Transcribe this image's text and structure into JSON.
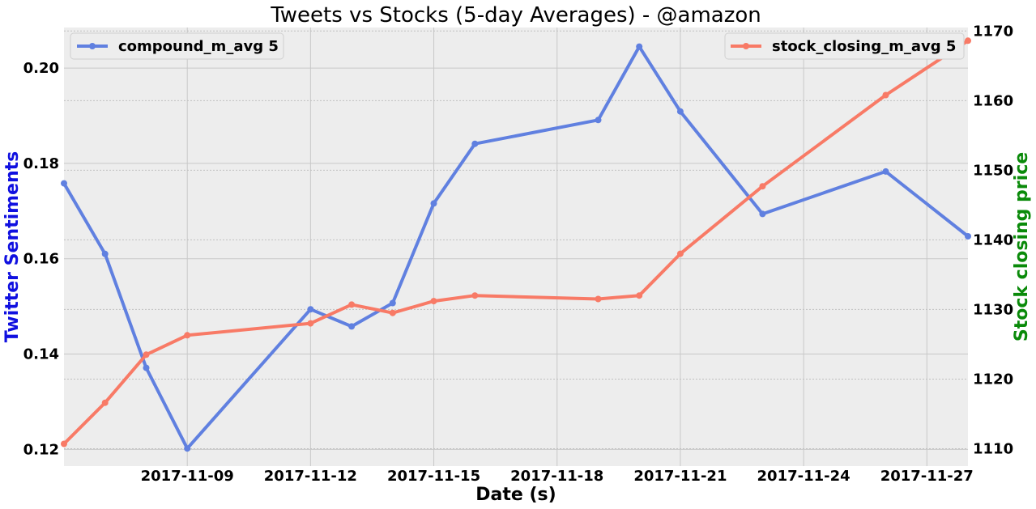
{
  "chart_data": {
    "type": "line",
    "title": "Tweets vs Stocks (5-day Averages) - @amazon",
    "xlabel": "Date (s)",
    "ylabel": "Twitter Sentiments",
    "y2label": "Stock closing price",
    "ylim": [
      0.1165,
      0.2085
    ],
    "y2lim": [
      1107.5,
      1170.5
    ],
    "xlim": [
      "2017-11-06",
      "2017-11-28"
    ],
    "x_ticks": [
      "2017-11-09",
      "2017-11-12",
      "2017-11-15",
      "2017-11-18",
      "2017-11-21",
      "2017-11-24",
      "2017-11-27"
    ],
    "y_ticks": [
      "0.12",
      "0.14",
      "0.16",
      "0.18",
      "0.20"
    ],
    "y2_ticks": [
      "1110",
      "1120",
      "1130",
      "1140",
      "1150",
      "1160",
      "1170"
    ],
    "grid": true,
    "series": [
      {
        "name": "compound_m_avg 5",
        "axis": "left",
        "color": "#6080e0",
        "legend_position": "top-left",
        "x": [
          "2017-11-06",
          "2017-11-07",
          "2017-11-08",
          "2017-11-09",
          "2017-11-12",
          "2017-11-13",
          "2017-11-14",
          "2017-11-15",
          "2017-11-16",
          "2017-11-19",
          "2017-11-20",
          "2017-11-21",
          "2017-11-23",
          "2017-11-26",
          "2017-11-28"
        ],
        "values": [
          0.1758,
          0.161,
          0.1371,
          0.1202,
          0.1494,
          0.1458,
          0.1507,
          0.1716,
          0.1841,
          0.1891,
          0.2045,
          0.1909,
          0.1694,
          0.1783,
          0.1647
        ]
      },
      {
        "name": "stock_closing_m_avg 5",
        "axis": "right",
        "color": "#f87a66",
        "legend_position": "top-right",
        "x": [
          "2017-11-06",
          "2017-11-07",
          "2017-11-08",
          "2017-11-09",
          "2017-11-12",
          "2017-11-13",
          "2017-11-14",
          "2017-11-15",
          "2017-11-16",
          "2017-11-19",
          "2017-11-20",
          "2017-11-21",
          "2017-11-23",
          "2017-11-26",
          "2017-11-28"
        ],
        "values": [
          1110.7,
          1116.6,
          1123.5,
          1126.3,
          1128.0,
          1130.7,
          1129.5,
          1131.2,
          1132.0,
          1131.5,
          1132.0,
          1138.0,
          1147.7,
          1160.8,
          1168.6
        ]
      }
    ]
  }
}
